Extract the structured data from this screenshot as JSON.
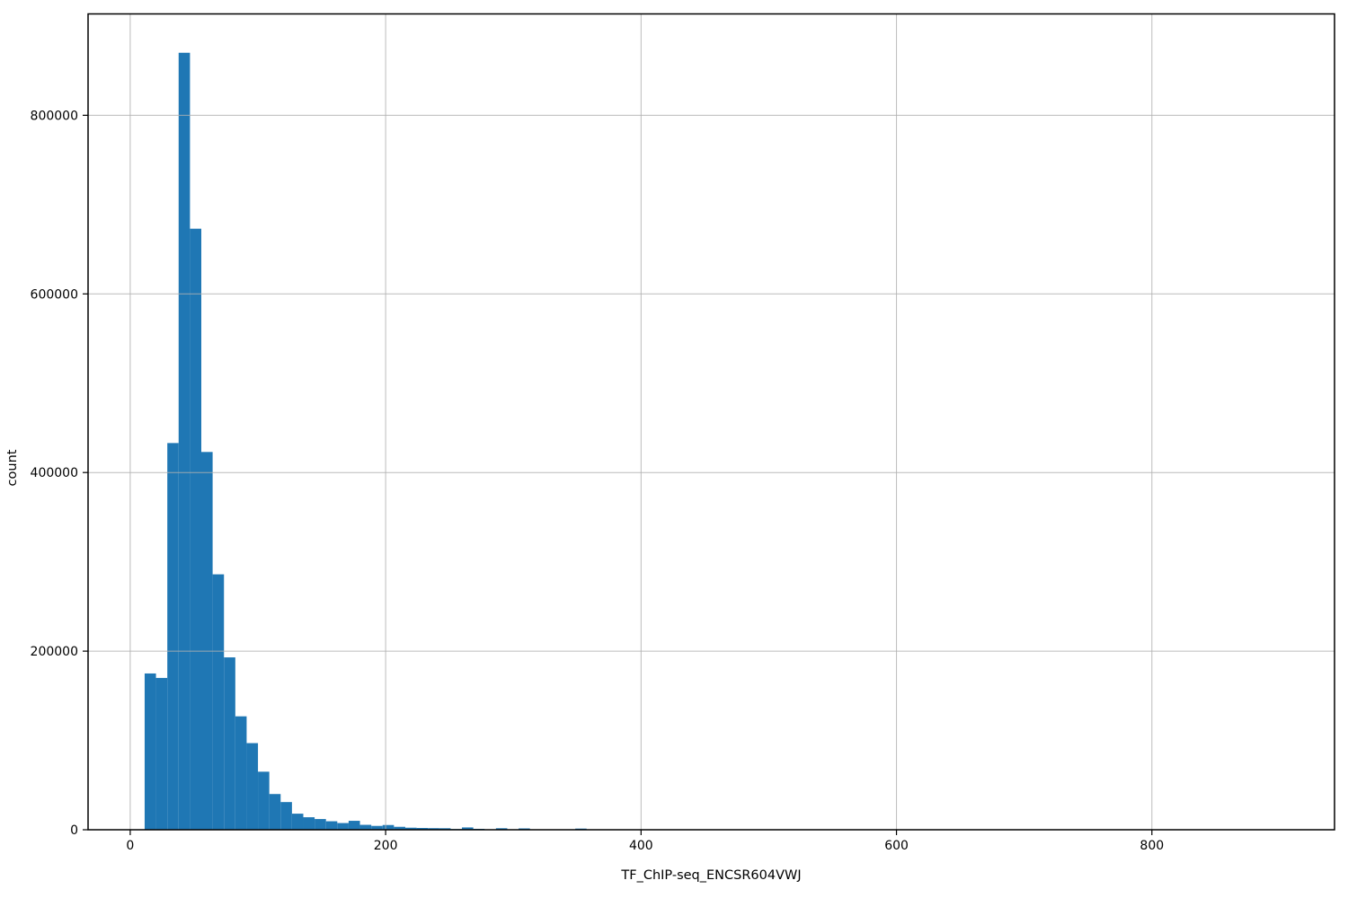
{
  "chart_data": {
    "type": "bar",
    "subtype": "histogram",
    "title": "",
    "xlabel": "TF_ChIP-seq_ENCSR604VWJ",
    "ylabel": "count",
    "bin_start": 11.3,
    "bin_width": 8.873,
    "counts": [
      175000,
      170000,
      433000,
      870000,
      673000,
      423000,
      286000,
      193000,
      127000,
      97000,
      65000,
      40000,
      31000,
      18000,
      14000,
      12000,
      9500,
      7500,
      10000,
      5500,
      4300,
      5300,
      3300,
      2300,
      2000,
      1800,
      1700,
      800,
      2600,
      1000,
      300,
      1700,
      300,
      1500,
      200,
      100,
      100,
      100,
      1300
    ],
    "x_ticks": [
      0,
      200,
      400,
      600,
      800
    ],
    "y_ticks": [
      0,
      200000,
      400000,
      600000,
      800000
    ],
    "xlim": [
      -33,
      943
    ],
    "ylim": [
      0,
      913500
    ],
    "grid": true,
    "legend": null,
    "bar_color": "#1f77b4",
    "grid_color": "#b0b0b0",
    "spine_color": "#000000"
  }
}
